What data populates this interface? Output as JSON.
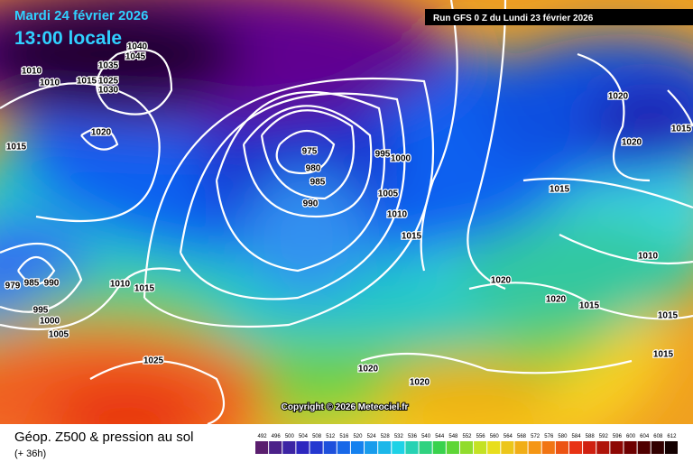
{
  "header": {
    "date": "Mardi 24 février 2026",
    "time": "13:00 locale",
    "run": "Run GFS 0 Z du Lundi 23 février 2026"
  },
  "copyright": "Copyright © 2026 Meteociel.fr",
  "legend": {
    "title": "Géop. Z500 & pression au sol",
    "subtitle": "(+ 36h)",
    "values": [
      492,
      496,
      500,
      504,
      508,
      512,
      516,
      520,
      524,
      528,
      532,
      536,
      540,
      544,
      548,
      552,
      556,
      560,
      564,
      568,
      572,
      576,
      580,
      584,
      588,
      592,
      596,
      600,
      604,
      608,
      612
    ]
  },
  "isobars": [
    1010,
    1010,
    1035,
    1040,
    1045,
    1015,
    1025,
    1030,
    1020,
    1015,
    975,
    980,
    985,
    990,
    995,
    1000,
    1005,
    1010,
    1015,
    1020,
    1020,
    1015,
    1015,
    1010,
    1020,
    1020,
    1015,
    1015,
    1015,
    1020,
    1020,
    1025,
    1010,
    1015,
    995,
    1000,
    1005,
    979,
    985,
    990
  ]
}
